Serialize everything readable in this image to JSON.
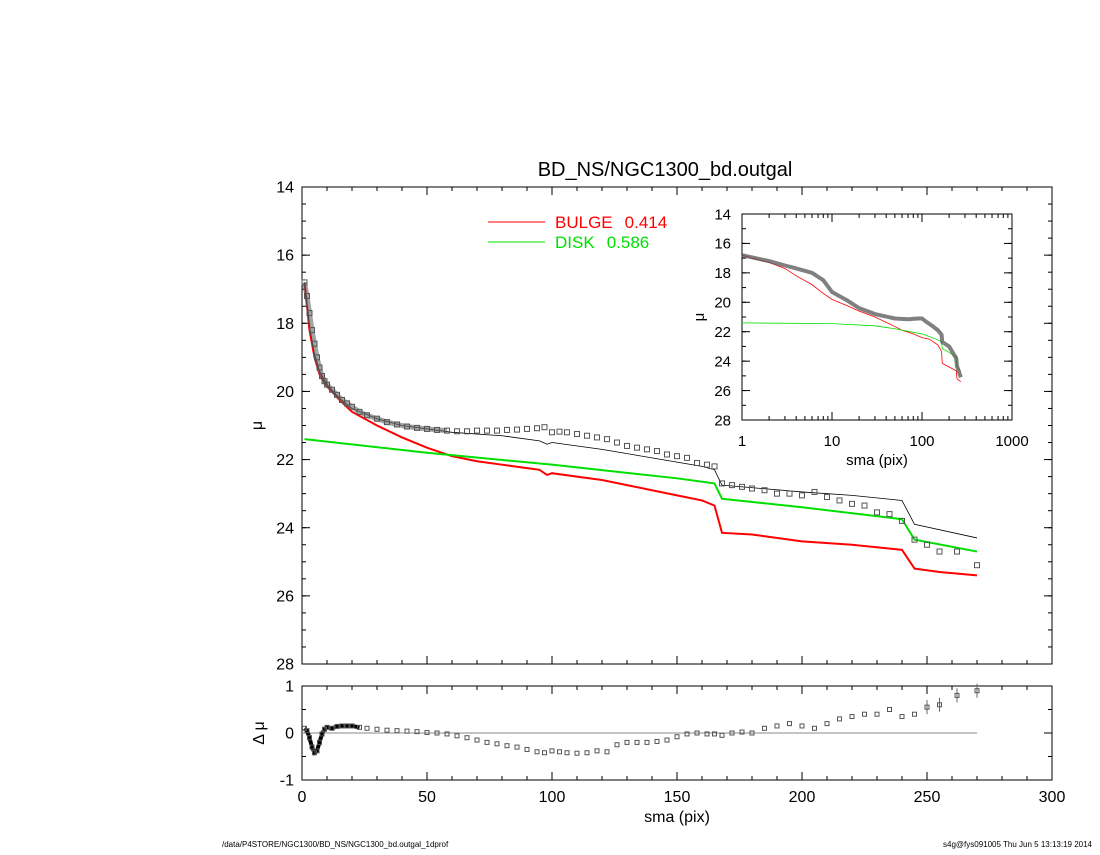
{
  "footer": {
    "left": "/data/P4STORE/NGC1300/BD_NS/NGC1300_bd.outgal_1dprof",
    "right": "s4g@fys091005  Thu Jun  5 13:13:19 2014"
  },
  "colors": {
    "bulge": "#ff0000",
    "disk": "#00e000",
    "model": "#000000",
    "data": "#555555"
  },
  "chart_data": [
    {
      "type": "line",
      "title": "BD_NS/NGC1300_bd.outgal",
      "ylabel": "μ",
      "xlim": [
        0,
        300
      ],
      "ylim": [
        28,
        14
      ],
      "yreversed": true,
      "xticks": [
        0,
        50,
        100,
        150,
        200,
        250,
        300
      ],
      "yticks": [
        14,
        16,
        18,
        20,
        22,
        24,
        26,
        28
      ],
      "legend_placement": "top-center",
      "legend": [
        {
          "label": "BULGE",
          "value": "0.414",
          "color": "#ff0000"
        },
        {
          "label": "DISK",
          "value": "0.586",
          "color": "#00e000"
        }
      ],
      "series": [
        {
          "name": "BULGE",
          "color": "#ff0000",
          "x": [
            1,
            3,
            5,
            7,
            10,
            15,
            20,
            30,
            40,
            50,
            60,
            70,
            80,
            90,
            95,
            98,
            100,
            110,
            120,
            130,
            140,
            150,
            160,
            165,
            168,
            180,
            200,
            220,
            240,
            245,
            255,
            270
          ],
          "y": [
            16.8,
            18.2,
            19.0,
            19.5,
            19.85,
            20.25,
            20.6,
            21.0,
            21.35,
            21.65,
            21.9,
            22.05,
            22.15,
            22.25,
            22.3,
            22.45,
            22.4,
            22.5,
            22.6,
            22.75,
            22.9,
            23.05,
            23.2,
            23.35,
            24.15,
            24.2,
            24.4,
            24.5,
            24.65,
            25.2,
            25.3,
            25.4
          ]
        },
        {
          "name": "DISK",
          "color": "#00e000",
          "x": [
            1,
            50,
            100,
            150,
            165,
            168,
            200,
            240,
            245,
            270
          ],
          "y": [
            21.4,
            21.8,
            22.15,
            22.55,
            22.7,
            23.15,
            23.4,
            23.75,
            24.35,
            24.7
          ]
        },
        {
          "name": "model",
          "color": "#000000",
          "x": [
            1,
            3,
            5,
            7,
            10,
            15,
            20,
            30,
            40,
            50,
            60,
            80,
            95,
            98,
            100,
            120,
            140,
            160,
            165,
            168,
            200,
            220,
            240,
            245,
            270
          ],
          "y": [
            16.8,
            18.1,
            18.9,
            19.4,
            19.8,
            20.2,
            20.5,
            20.8,
            21.0,
            21.1,
            21.2,
            21.3,
            21.45,
            21.55,
            21.5,
            21.7,
            21.95,
            22.2,
            22.3,
            22.75,
            22.95,
            23.05,
            23.2,
            23.9,
            24.3
          ]
        },
        {
          "name": "data",
          "color": "#555555",
          "marker": "square",
          "x": [
            1,
            2,
            3,
            4,
            5,
            6,
            7,
            8,
            9,
            10,
            12,
            14,
            16,
            18,
            20,
            23,
            26,
            30,
            34,
            38,
            42,
            46,
            50,
            54,
            58,
            62,
            66,
            70,
            74,
            78,
            82,
            86,
            90,
            94,
            97,
            100,
            103,
            106,
            110,
            114,
            118,
            122,
            126,
            130,
            134,
            138,
            142,
            146,
            150,
            154,
            158,
            162,
            165,
            168,
            172,
            176,
            180,
            185,
            190,
            195,
            200,
            205,
            210,
            215,
            220,
            225,
            230,
            235,
            240,
            245,
            250,
            255,
            262,
            270
          ],
          "y": [
            16.8,
            17.2,
            17.7,
            18.2,
            18.6,
            19.0,
            19.3,
            19.55,
            19.7,
            19.8,
            19.95,
            20.1,
            20.25,
            20.35,
            20.45,
            20.6,
            20.7,
            20.8,
            20.9,
            20.97,
            21.03,
            21.07,
            21.1,
            21.13,
            21.15,
            21.17,
            21.17,
            21.15,
            21.15,
            21.15,
            21.13,
            21.12,
            21.1,
            21.08,
            21.05,
            21.2,
            21.18,
            21.2,
            21.25,
            21.3,
            21.35,
            21.4,
            21.5,
            21.6,
            21.65,
            21.7,
            21.75,
            21.85,
            21.9,
            21.95,
            22.1,
            22.15,
            22.2,
            22.7,
            22.75,
            22.8,
            22.85,
            22.9,
            23.0,
            23.0,
            23.05,
            22.95,
            23.1,
            23.2,
            23.3,
            23.35,
            23.55,
            23.6,
            23.8,
            24.35,
            24.5,
            24.7,
            24.7,
            25.1
          ]
        }
      ]
    },
    {
      "type": "line",
      "xlabel": "sma (pix)",
      "ylabel": "μ",
      "xscale": "log",
      "xlim": [
        1,
        1000
      ],
      "ylim": [
        28,
        14
      ],
      "yreversed": true,
      "xticks": [
        1,
        10,
        100,
        1000
      ],
      "yticks": [
        14,
        16,
        18,
        20,
        22,
        24,
        26,
        28
      ],
      "series": [
        {
          "name": "BULGE",
          "color": "#ff0000",
          "x": [
            1,
            2,
            3,
            4,
            6,
            8,
            10,
            15,
            20,
            30,
            50,
            60,
            80,
            100,
            120,
            150,
            165,
            168,
            200,
            240,
            245,
            270
          ],
          "y": [
            16.8,
            17.3,
            17.7,
            18.2,
            18.8,
            19.4,
            19.8,
            20.25,
            20.6,
            21.0,
            21.65,
            21.9,
            22.15,
            22.4,
            22.5,
            22.9,
            23.35,
            24.15,
            24.4,
            24.65,
            25.2,
            25.4
          ]
        },
        {
          "name": "DISK",
          "color": "#00e000",
          "x": [
            1,
            10,
            30,
            50,
            100,
            150,
            165,
            168,
            200,
            240,
            245,
            270
          ],
          "y": [
            21.4,
            21.45,
            21.6,
            21.8,
            22.15,
            22.55,
            22.7,
            23.15,
            23.4,
            23.75,
            24.35,
            24.7
          ]
        },
        {
          "name": "data",
          "color": "#555555",
          "x": [
            1,
            2,
            3,
            4,
            6,
            8,
            10,
            15,
            20,
            30,
            50,
            70,
            90,
            100,
            110,
            130,
            150,
            165,
            168,
            200,
            240,
            245,
            270
          ],
          "y": [
            16.8,
            17.2,
            17.5,
            17.7,
            18.0,
            18.5,
            19.3,
            19.9,
            20.4,
            20.8,
            21.1,
            21.15,
            21.1,
            21.1,
            21.3,
            21.6,
            21.9,
            22.2,
            22.7,
            23.0,
            23.8,
            24.35,
            25.1
          ]
        }
      ]
    },
    {
      "type": "scatter",
      "xlabel": "sma (pix)",
      "ylabel": "Δ μ",
      "xlim": [
        0,
        300
      ],
      "ylim": [
        -1,
        1
      ],
      "xticks": [
        0,
        50,
        100,
        150,
        200,
        250,
        300
      ],
      "yticks": [
        -1,
        0,
        1
      ],
      "reference_line": 0,
      "series": [
        {
          "name": "residual",
          "color": "#555555",
          "x": [
            1,
            2,
            3,
            4,
            5,
            6,
            7,
            8,
            9,
            10,
            12,
            14,
            16,
            18,
            20,
            23,
            26,
            30,
            34,
            38,
            42,
            46,
            50,
            54,
            58,
            62,
            66,
            70,
            74,
            78,
            82,
            86,
            90,
            94,
            97,
            100,
            103,
            106,
            110,
            114,
            118,
            122,
            126,
            130,
            134,
            138,
            142,
            146,
            150,
            154,
            158,
            162,
            165,
            168,
            172,
            176,
            180,
            185,
            190,
            195,
            200,
            205,
            210,
            215,
            220,
            225,
            230,
            235,
            240,
            245,
            250,
            255,
            262,
            270
          ],
          "y": [
            0.1,
            0.05,
            -0.1,
            -0.3,
            -0.42,
            -0.38,
            -0.2,
            -0.02,
            0.08,
            0.12,
            0.1,
            0.14,
            0.15,
            0.15,
            0.15,
            0.12,
            0.1,
            0.08,
            0.06,
            0.05,
            0.04,
            0.03,
            0.01,
            0.0,
            -0.02,
            -0.06,
            -0.1,
            -0.15,
            -0.2,
            -0.23,
            -0.27,
            -0.3,
            -0.35,
            -0.4,
            -0.42,
            -0.38,
            -0.4,
            -0.42,
            -0.43,
            -0.42,
            -0.38,
            -0.4,
            -0.25,
            -0.2,
            -0.2,
            -0.2,
            -0.18,
            -0.15,
            -0.08,
            -0.02,
            0.0,
            -0.02,
            -0.02,
            -0.05,
            0.0,
            0.02,
            0.0,
            0.1,
            0.15,
            0.2,
            0.15,
            0.1,
            0.2,
            0.3,
            0.35,
            0.4,
            0.4,
            0.5,
            0.35,
            0.4,
            0.55,
            0.6,
            0.8,
            0.9
          ]
        }
      ]
    }
  ]
}
